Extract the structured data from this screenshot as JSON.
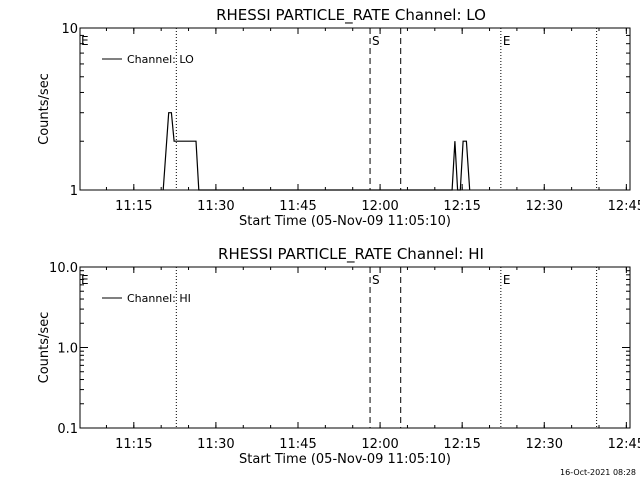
{
  "footer": {
    "timestamp": "16-Oct-2021 08:28"
  },
  "chart_data": [
    {
      "type": "line",
      "title": "RHESSI PARTICLE_RATE Channel: LO",
      "xlabel": "Start Time (05-Nov-09 11:05:10)",
      "ylabel": "Counts/sec",
      "x_ticks": [
        "11:15",
        "11:30",
        "11:45",
        "12:00",
        "12:15",
        "12:30",
        "12:45"
      ],
      "x_tick_minutes": [
        9.833,
        24.833,
        39.833,
        54.833,
        69.833,
        84.833,
        99.833
      ],
      "xlim_minutes": [
        0,
        100.5
      ],
      "yscale": "log",
      "ylim": [
        1,
        10
      ],
      "y_ticks": [
        "1",
        "10"
      ],
      "y_tick_values": [
        1,
        10
      ],
      "legend": {
        "position": "top-left",
        "entries": [
          "Channel: LO"
        ]
      },
      "series": [
        {
          "name": "Channel: LO",
          "color": "#000000",
          "x_minutes": [
            15.2,
            16.2,
            16.7,
            17.2,
            17.7,
            18.4,
            21.2,
            21.7,
            68.0,
            68.5,
            69.0,
            69.5,
            70.0,
            70.6,
            71.2
          ],
          "values": [
            1,
            3,
            3,
            2,
            2,
            2,
            2,
            1,
            1,
            2,
            1,
            1,
            2,
            2,
            1
          ]
        }
      ],
      "vertical_lines": [
        {
          "x_minutes": 17.6,
          "style": "dotted",
          "label": ""
        },
        {
          "x_minutes": 53.0,
          "style": "dashed",
          "label": "S"
        },
        {
          "x_minutes": 58.6,
          "style": "dashed",
          "label": ""
        },
        {
          "x_minutes": 76.9,
          "style": "dotted",
          "label": "E"
        },
        {
          "x_minutes": 94.4,
          "style": "dotted",
          "label": ""
        }
      ],
      "edge_labels": {
        "left": "E"
      }
    },
    {
      "type": "line",
      "title": "RHESSI PARTICLE_RATE Channel: HI",
      "xlabel": "Start Time (05-Nov-09 11:05:10)",
      "ylabel": "Counts/sec",
      "x_ticks": [
        "11:15",
        "11:30",
        "11:45",
        "12:00",
        "12:15",
        "12:30",
        "12:45"
      ],
      "x_tick_minutes": [
        9.833,
        24.833,
        39.833,
        54.833,
        69.833,
        84.833,
        99.833
      ],
      "xlim_minutes": [
        0,
        100.5
      ],
      "yscale": "log",
      "ylim": [
        0.1,
        10
      ],
      "y_ticks": [
        "0.1",
        "1.0",
        "10.0"
      ],
      "y_tick_values": [
        0.1,
        1,
        10
      ],
      "legend": {
        "position": "top-left",
        "entries": [
          "Channel: HI"
        ]
      },
      "series": [
        {
          "name": "Channel: HI",
          "color": "#000000",
          "x_minutes": [],
          "values": []
        }
      ],
      "vertical_lines": [
        {
          "x_minutes": 17.6,
          "style": "dotted",
          "label": ""
        },
        {
          "x_minutes": 53.0,
          "style": "dashed",
          "label": "S"
        },
        {
          "x_minutes": 58.6,
          "style": "dashed",
          "label": ""
        },
        {
          "x_minutes": 76.9,
          "style": "dotted",
          "label": "E"
        },
        {
          "x_minutes": 94.4,
          "style": "dotted",
          "label": ""
        }
      ],
      "edge_labels": {
        "left": "E"
      }
    }
  ]
}
